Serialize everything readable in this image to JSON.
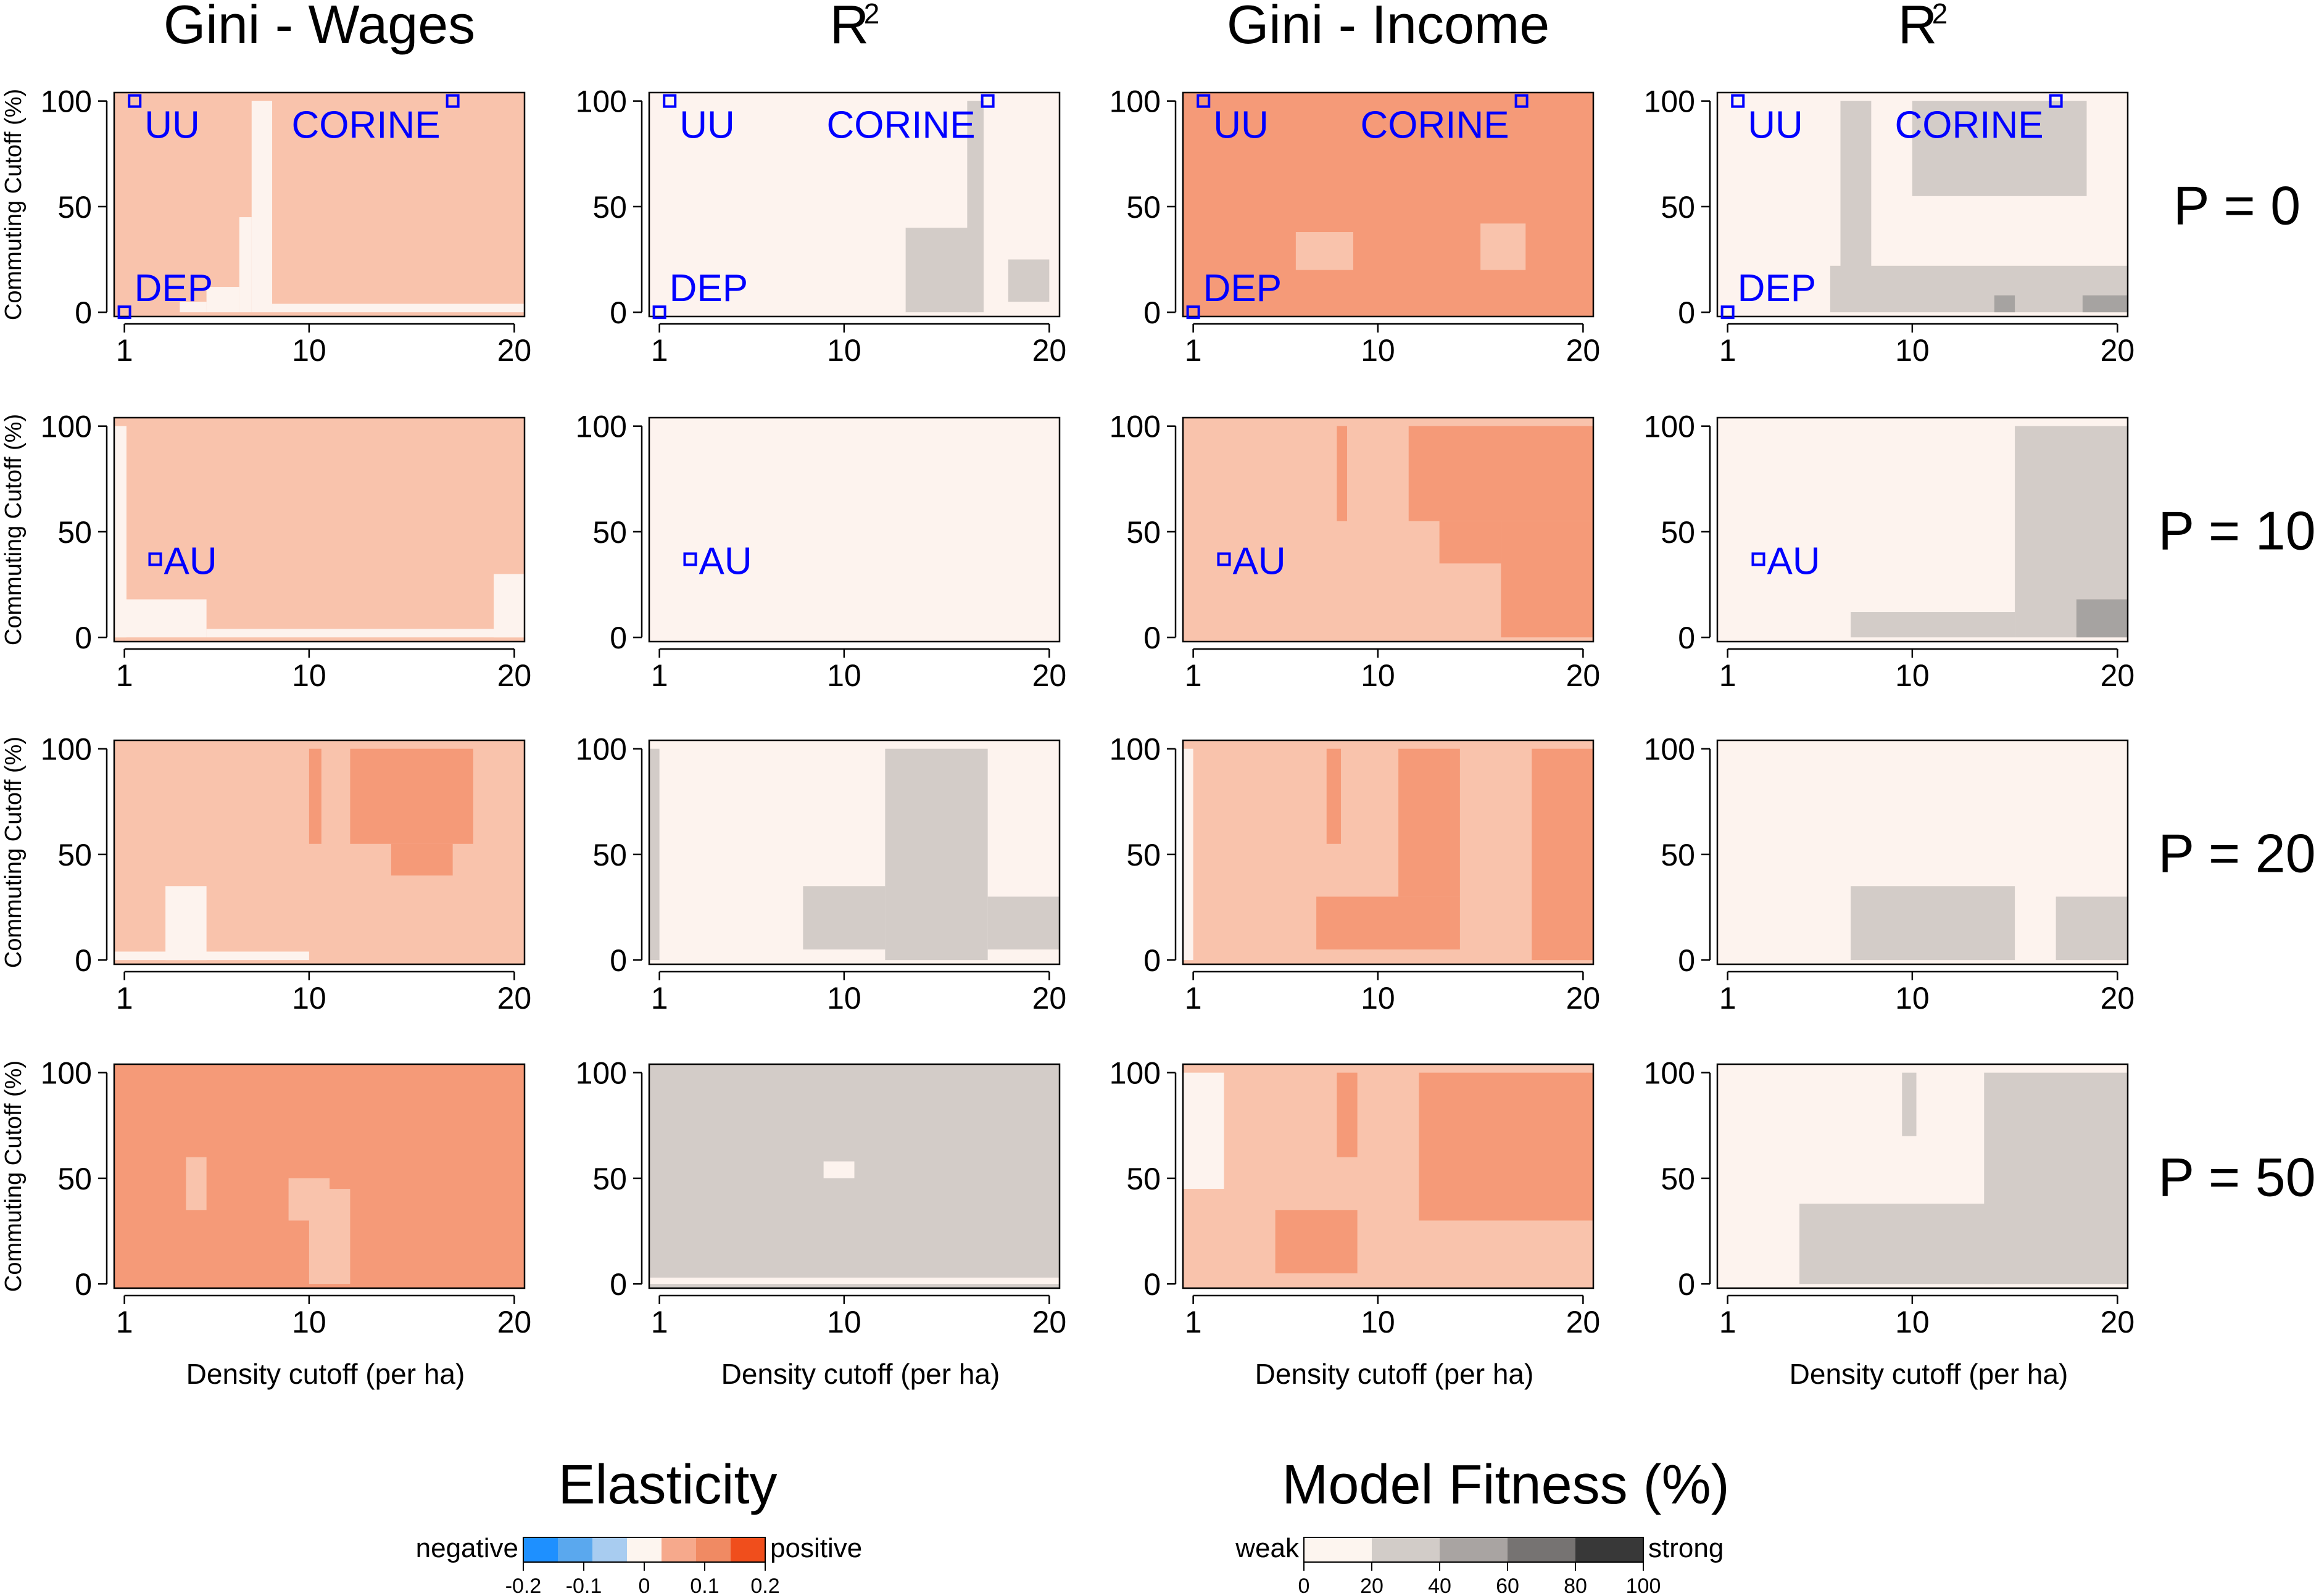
{
  "chart_data": {
    "type": "heatmap",
    "grid": {
      "x_range": [
        1,
        20
      ],
      "y_range": [
        0,
        100
      ],
      "x_ticks": [
        "1",
        "10",
        "20"
      ],
      "y_ticks": [
        "0",
        "50",
        "100"
      ],
      "xlabel": "Density cutoff (per ha)",
      "ylabel": "Commuting Cutoff (%)"
    },
    "column_titles": [
      {
        "base": "Gini - Wages",
        "sup": ""
      },
      {
        "base": "R",
        "sup": "2"
      },
      {
        "base": "Gini - Income",
        "sup": ""
      },
      {
        "base": "R",
        "sup": "2"
      }
    ],
    "row_labels": [
      "P = 0",
      "P = 10",
      "P = 20",
      "P = 50"
    ],
    "panel_markers": [
      [
        {
          "label": "UU",
          "x": 1.5,
          "y": 100
        },
        {
          "label": "CORINE",
          "x": 17,
          "y": 100
        },
        {
          "label": "DEP",
          "x": 1,
          "y": 0
        }
      ],
      [
        {
          "label": "AU",
          "x": 2.5,
          "y": 37
        }
      ],
      [],
      []
    ],
    "legend_elasticity": {
      "title": "Elasticity",
      "low_label": "negative",
      "high_label": "positive",
      "ticks": [
        "-0.2",
        "-0.1",
        "0",
        "0.1",
        "0.2"
      ],
      "colors": [
        "#1e90ff",
        "#5aa8ee",
        "#a8ccf0",
        "#fdf5ef",
        "#f6a98c",
        "#f08a63",
        "#f04e1c"
      ]
    },
    "legend_fitness": {
      "title": "Model Fitness (%)",
      "low_label": "weak",
      "high_label": "strong",
      "ticks": [
        "0",
        "20",
        "40",
        "60",
        "80",
        "100"
      ],
      "colors": [
        "#fdf5ef",
        "#d2ccc8",
        "#a9a4a2",
        "#767372",
        "#383838"
      ]
    },
    "elasticity_palette": {
      "0": "#fdf3ee",
      "1": "#f9c3ac",
      "2": "#f59a78"
    },
    "fitness_palette": {
      "0": "#fdf3ee",
      "1": "#d3ccc8",
      "2": "#a6a3a1",
      "3": "#7a7877"
    },
    "panel_values_note_free": true,
    "panels": [
      {
        "row": 0,
        "col": 0,
        "kind": "elasticity",
        "default": 1,
        "patches": [
          {
            "v": 0,
            "x": [
              7.2,
              8.2
            ],
            "y": [
              0,
              100
            ]
          },
          {
            "v": 0,
            "x": [
              6.6,
              7.2
            ],
            "y": [
              0,
              45
            ]
          },
          {
            "v": 0,
            "x": [
              5.0,
              6.6
            ],
            "y": [
              0,
              12
            ]
          },
          {
            "v": 0,
            "x": [
              3.7,
              5.0
            ],
            "y": [
              0,
              5
            ]
          },
          {
            "v": 0,
            "x": [
              8.2,
              20.5
            ],
            "y": [
              0,
              4
            ]
          }
        ]
      },
      {
        "row": 0,
        "col": 1,
        "kind": "fitness",
        "default": 0,
        "patches": [
          {
            "v": 1,
            "x": [
              13.0,
              16.5
            ],
            "y": [
              0,
              40
            ]
          },
          {
            "v": 1,
            "x": [
              16.0,
              16.8
            ],
            "y": [
              0,
              100
            ]
          },
          {
            "v": 1,
            "x": [
              18.0,
              20.0
            ],
            "y": [
              5,
              25
            ]
          }
        ]
      },
      {
        "row": 0,
        "col": 2,
        "kind": "elasticity",
        "default": 2,
        "patches": [
          {
            "v": 1,
            "x": [
              6.0,
              8.8
            ],
            "y": [
              20,
              38
            ]
          },
          {
            "v": 1,
            "x": [
              15.0,
              17.2
            ],
            "y": [
              20,
              42
            ]
          }
        ]
      },
      {
        "row": 0,
        "col": 3,
        "kind": "fitness",
        "default": 0,
        "patches": [
          {
            "v": 1,
            "x": [
              6.0,
              20.5
            ],
            "y": [
              0,
              22
            ]
          },
          {
            "v": 1,
            "x": [
              6.5,
              8.0
            ],
            "y": [
              20,
              100
            ]
          },
          {
            "v": 1,
            "x": [
              10.0,
              18.5
            ],
            "y": [
              55,
              100
            ]
          },
          {
            "v": 2,
            "x": [
              14.0,
              15.0
            ],
            "y": [
              0,
              8
            ]
          },
          {
            "v": 2,
            "x": [
              18.3,
              20.5
            ],
            "y": [
              0,
              8
            ]
          }
        ]
      },
      {
        "row": 1,
        "col": 0,
        "kind": "elasticity",
        "default": 1,
        "patches": [
          {
            "v": 0,
            "x": [
              0.5,
              1.1
            ],
            "y": [
              0,
              100
            ]
          },
          {
            "v": 0,
            "x": [
              0.5,
              5.0
            ],
            "y": [
              0,
              18
            ]
          },
          {
            "v": 0,
            "x": [
              5.0,
              20.5
            ],
            "y": [
              0,
              4
            ]
          },
          {
            "v": 0,
            "x": [
              19.0,
              20.5
            ],
            "y": [
              0,
              30
            ]
          }
        ]
      },
      {
        "row": 1,
        "col": 1,
        "kind": "fitness",
        "default": 0,
        "patches": []
      },
      {
        "row": 1,
        "col": 2,
        "kind": "elasticity",
        "default": 1,
        "patches": [
          {
            "v": 2,
            "x": [
              11.5,
              20.5
            ],
            "y": [
              55,
              100
            ]
          },
          {
            "v": 2,
            "x": [
              16.0,
              20.5
            ],
            "y": [
              0,
              55
            ]
          },
          {
            "v": 2,
            "x": [
              8.0,
              8.5
            ],
            "y": [
              55,
              100
            ]
          },
          {
            "v": 2,
            "x": [
              13.0,
              16.0
            ],
            "y": [
              35,
              55
            ]
          }
        ]
      },
      {
        "row": 1,
        "col": 3,
        "kind": "fitness",
        "default": 0,
        "patches": [
          {
            "v": 1,
            "x": [
              15.0,
              20.5
            ],
            "y": [
              0,
              100
            ]
          },
          {
            "v": 1,
            "x": [
              7.0,
              15.0
            ],
            "y": [
              0,
              12
            ]
          },
          {
            "v": 2,
            "x": [
              18.0,
              20.5
            ],
            "y": [
              0,
              18
            ]
          }
        ]
      },
      {
        "row": 2,
        "col": 0,
        "kind": "elasticity",
        "default": 1,
        "patches": [
          {
            "v": 0,
            "x": [
              3.0,
              5.0
            ],
            "y": [
              0,
              35
            ]
          },
          {
            "v": 0,
            "x": [
              0.5,
              10.0
            ],
            "y": [
              0,
              4
            ]
          },
          {
            "v": 2,
            "x": [
              12.0,
              18.0
            ],
            "y": [
              55,
              100
            ]
          },
          {
            "v": 2,
            "x": [
              14.0,
              17.0
            ],
            "y": [
              40,
              55
            ]
          },
          {
            "v": 2,
            "x": [
              10.0,
              10.6
            ],
            "y": [
              55,
              100
            ]
          }
        ]
      },
      {
        "row": 2,
        "col": 1,
        "kind": "fitness",
        "default": 0,
        "patches": [
          {
            "v": 1,
            "x": [
              0.5,
              1.0
            ],
            "y": [
              0,
              100
            ]
          },
          {
            "v": 1,
            "x": [
              12.0,
              17.0
            ],
            "y": [
              0,
              100
            ]
          },
          {
            "v": 1,
            "x": [
              8.0,
              12.0
            ],
            "y": [
              5,
              35
            ]
          },
          {
            "v": 1,
            "x": [
              17.0,
              20.5
            ],
            "y": [
              5,
              30
            ]
          }
        ]
      },
      {
        "row": 2,
        "col": 2,
        "kind": "elasticity",
        "default": 1,
        "patches": [
          {
            "v": 2,
            "x": [
              17.5,
              20.5
            ],
            "y": [
              0,
              100
            ]
          },
          {
            "v": 2,
            "x": [
              7.0,
              14.0
            ],
            "y": [
              5,
              30
            ]
          },
          {
            "v": 2,
            "x": [
              11.0,
              14.0
            ],
            "y": [
              30,
              100
            ]
          },
          {
            "v": 2,
            "x": [
              7.5,
              8.2
            ],
            "y": [
              55,
              100
            ]
          },
          {
            "v": 0,
            "x": [
              0.5,
              1.0
            ],
            "y": [
              0,
              100
            ]
          }
        ]
      },
      {
        "row": 2,
        "col": 3,
        "kind": "fitness",
        "default": 0,
        "patches": [
          {
            "v": 1,
            "x": [
              7.0,
              15.0
            ],
            "y": [
              0,
              35
            ]
          },
          {
            "v": 1,
            "x": [
              17.0,
              20.5
            ],
            "y": [
              0,
              30
            ]
          }
        ]
      },
      {
        "row": 3,
        "col": 0,
        "kind": "elasticity",
        "default": 2,
        "patches": [
          {
            "v": 1,
            "x": [
              10.0,
              12.0
            ],
            "y": [
              0,
              45
            ]
          },
          {
            "v": 1,
            "x": [
              4.0,
              5.0
            ],
            "y": [
              35,
              60
            ]
          },
          {
            "v": 1,
            "x": [
              9.0,
              11.0
            ],
            "y": [
              30,
              50
            ]
          }
        ]
      },
      {
        "row": 3,
        "col": 1,
        "kind": "fitness",
        "default": 1,
        "patches": [
          {
            "v": 0,
            "x": [
              0.5,
              20.5
            ],
            "y": [
              0,
              3
            ]
          },
          {
            "v": 0,
            "x": [
              9.0,
              10.5
            ],
            "y": [
              50,
              58
            ]
          }
        ]
      },
      {
        "row": 3,
        "col": 2,
        "kind": "elasticity",
        "default": 1,
        "patches": [
          {
            "v": 0,
            "x": [
              0.5,
              2.5
            ],
            "y": [
              45,
              100
            ]
          },
          {
            "v": 2,
            "x": [
              12.0,
              20.5
            ],
            "y": [
              30,
              100
            ]
          },
          {
            "v": 2,
            "x": [
              8.0,
              9.0
            ],
            "y": [
              60,
              100
            ]
          },
          {
            "v": 2,
            "x": [
              5.0,
              9.0
            ],
            "y": [
              5,
              35
            ]
          }
        ]
      },
      {
        "row": 3,
        "col": 3,
        "kind": "fitness",
        "default": 0,
        "patches": [
          {
            "v": 1,
            "x": [
              4.5,
              14.0
            ],
            "y": [
              0,
              38
            ]
          },
          {
            "v": 1,
            "x": [
              13.5,
              20.5
            ],
            "y": [
              0,
              100
            ]
          },
          {
            "v": 1,
            "x": [
              9.5,
              10.2
            ],
            "y": [
              70,
              100
            ]
          }
        ]
      }
    ]
  }
}
